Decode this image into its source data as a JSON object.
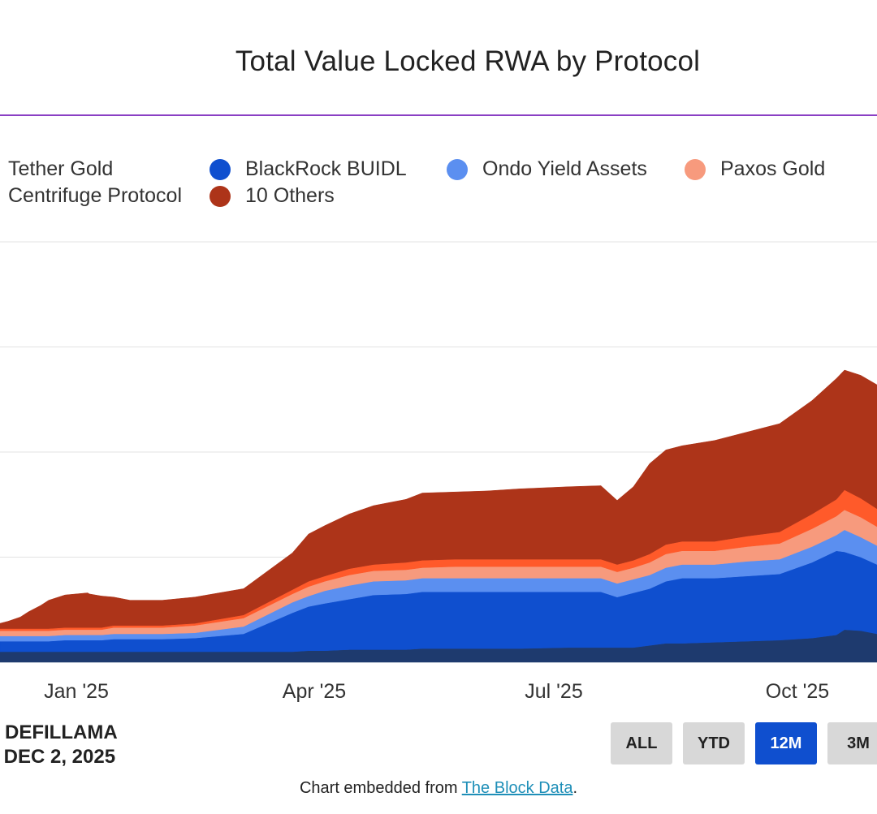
{
  "chart_data": {
    "type": "area",
    "stacked": true,
    "title": "Total Value Locked RWA by Protocol",
    "xlabel": "",
    "ylabel": "",
    "x_tick_labels": [
      "Jan '25",
      "Apr '25",
      "Jul '25",
      "Oct '25"
    ],
    "legend": [
      {
        "name": "Tether Gold",
        "color": "#1e3a6e"
      },
      {
        "name": "BlackRock BUIDL",
        "color": "#0f4fcf"
      },
      {
        "name": "Ondo Yield Assets",
        "color": "#5b8ff0"
      },
      {
        "name": "Paxos Gold",
        "color": "#f79a7d"
      },
      {
        "name": "Centrifuge Protocol",
        "color": "#ff5a2a"
      },
      {
        "name": "10 Others",
        "color": "#ad3419"
      }
    ],
    "x": [
      0,
      10,
      25,
      35,
      50,
      60,
      80,
      108,
      110,
      125,
      140,
      160,
      170,
      200,
      240,
      300,
      360,
      380,
      400,
      430,
      460,
      500,
      520,
      560,
      600,
      640,
      700,
      740,
      760,
      780,
      800,
      820,
      840,
      880,
      920,
      960,
      1000,
      1030,
      1040,
      1060,
      1080
    ],
    "series": [
      {
        "name": "Tether Gold",
        "values": [
          10,
          10,
          10,
          10,
          10,
          10,
          10,
          10,
          10,
          10,
          10,
          10,
          10,
          10,
          10,
          10,
          10,
          11,
          11,
          12,
          12,
          12,
          13,
          13,
          13,
          13,
          14,
          14,
          14,
          14,
          16,
          18,
          18,
          19,
          20,
          21,
          23,
          26,
          31,
          30,
          27
        ]
      },
      {
        "name": "BlackRock BUIDL",
        "values": [
          10,
          10,
          10,
          10,
          10,
          10,
          11,
          11,
          11,
          11,
          12,
          12,
          12,
          12,
          13,
          17,
          37,
          42,
          45,
          48,
          52,
          53,
          54,
          54,
          54,
          54,
          53,
          53,
          48,
          52,
          54,
          59,
          62,
          61,
          62,
          63,
          72,
          80,
          74,
          70,
          66
        ]
      },
      {
        "name": "Ondo Yield Assets",
        "values": [
          5,
          5,
          5,
          5,
          5,
          5,
          5,
          5,
          5,
          5,
          5,
          5,
          5,
          5,
          5,
          7,
          10,
          10,
          12,
          13,
          13,
          13,
          13,
          13,
          13,
          13,
          13,
          13,
          13,
          13,
          13,
          13,
          13,
          13,
          14,
          14,
          15,
          15,
          21,
          19,
          18
        ]
      },
      {
        "name": "Paxos Gold",
        "values": [
          5,
          5,
          5,
          5,
          5,
          5,
          5,
          5,
          5,
          5,
          6,
          6,
          6,
          6,
          7,
          8,
          8,
          9,
          9,
          10,
          10,
          10,
          10,
          11,
          11,
          11,
          11,
          11,
          11,
          11,
          12,
          13,
          13,
          13,
          14,
          15,
          17,
          18,
          19,
          19,
          18
        ]
      },
      {
        "name": "Centrifuge Protocol",
        "values": [
          2,
          2,
          2,
          2,
          2,
          2,
          2,
          2,
          2,
          2,
          2,
          2,
          2,
          2,
          2,
          3,
          4,
          5,
          5,
          6,
          6,
          7,
          7,
          7,
          7,
          7,
          7,
          7,
          7,
          7,
          8,
          9,
          9,
          9,
          10,
          11,
          14,
          16,
          19,
          18,
          17
        ]
      },
      {
        "name": "10 Others",
        "values": [
          5,
          7,
          11,
          16,
          22,
          27,
          31,
          33,
          32,
          30,
          27,
          24,
          24,
          24,
          25,
          25,
          35,
          45,
          48,
          52,
          56,
          60,
          64,
          64,
          65,
          67,
          69,
          70,
          61,
          70,
          86,
          90,
          91,
          96,
          99,
          103,
          108,
          115,
          114,
          117,
          118
        ]
      }
    ],
    "ylim": [
      0,
      400
    ],
    "grid": true,
    "legend_position": "top"
  },
  "footer": {
    "source": "DEFILLAMA",
    "date": ": DEC 2, 2025"
  },
  "range_buttons": [
    "ALL",
    "YTD",
    "12M",
    "3M"
  ],
  "active_range": "12M",
  "embed": {
    "prefix": "Chart embedded from ",
    "link_text": "The Block Data",
    "suffix": "."
  }
}
